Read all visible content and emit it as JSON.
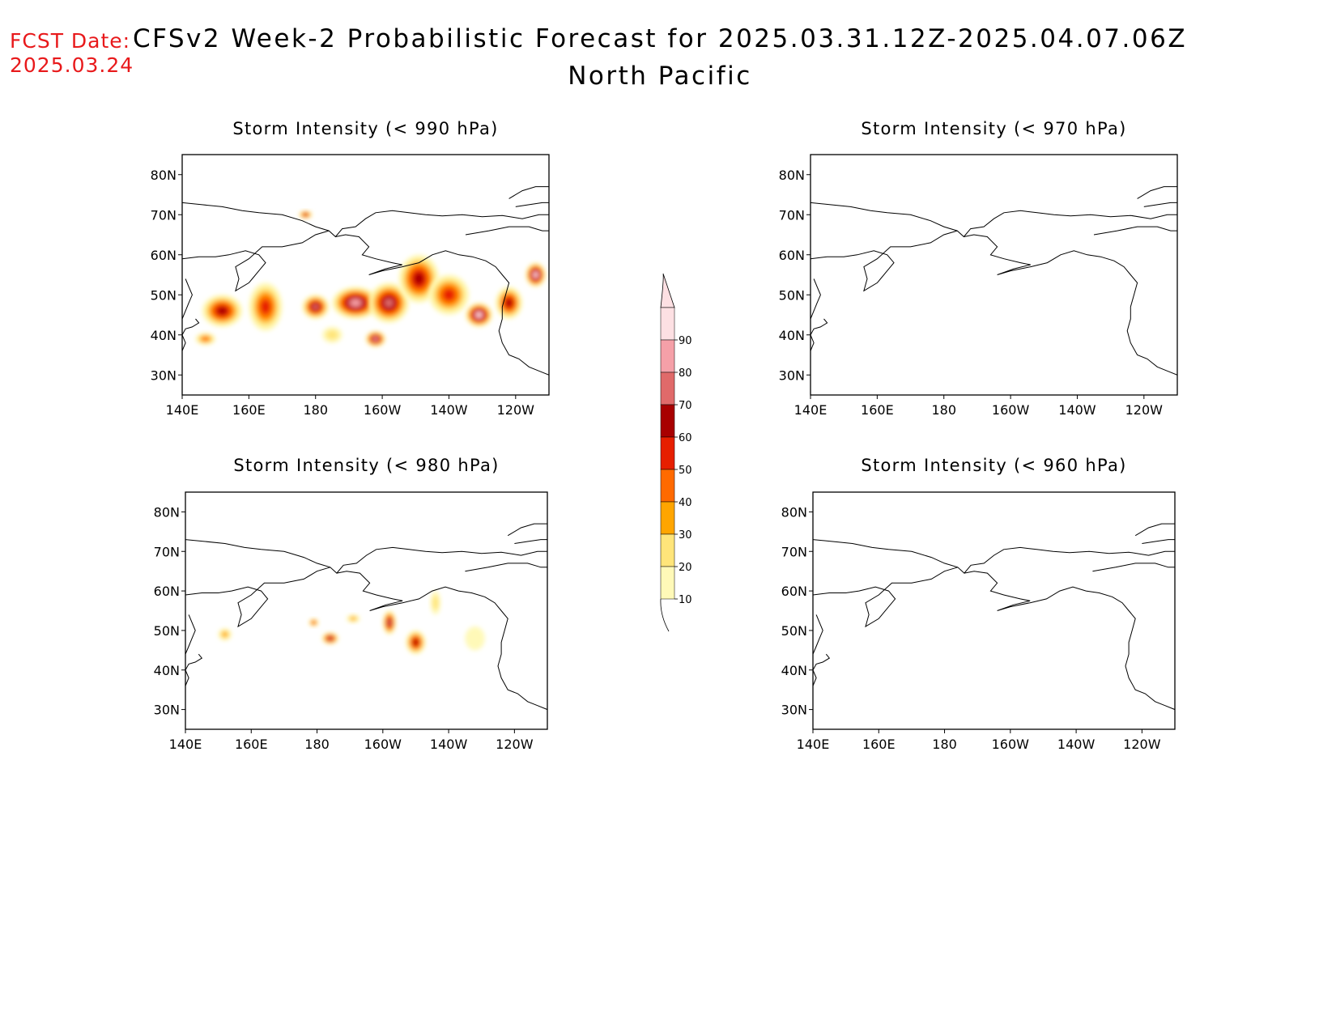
{
  "header": {
    "fcst_label": "FCST Date:",
    "fcst_date": "2025.03.24",
    "title": "CFSv2 Week-2 Probabilistic Forecast for 2025.03.31.12Z-2025.04.07.06Z",
    "subtitle": "North Pacific"
  },
  "colors": {
    "levels": [
      "#fff9b8",
      "#ffe57a",
      "#ffa500",
      "#ff6a00",
      "#e61f00",
      "#a80000",
      "#e06a6a",
      "#f5a0a8",
      "#fde0e3"
    ]
  },
  "chart_data": {
    "type": "heatmap",
    "lon_ticks": [
      "140E",
      "160E",
      "180",
      "160W",
      "140W",
      "120W"
    ],
    "lat_ticks": [
      "80N",
      "70N",
      "60N",
      "50N",
      "40N",
      "30N"
    ],
    "lon_range": [
      140,
      250
    ],
    "lat_range": [
      25,
      85
    ],
    "colorbar": {
      "levels": [
        10,
        20,
        30,
        40,
        50,
        60,
        70,
        80,
        90
      ],
      "labels": [
        "10",
        "20",
        "30",
        "40",
        "50",
        "60",
        "70",
        "80",
        "90"
      ]
    },
    "panels": [
      {
        "id": "p990",
        "title": "Storm Intensity (< 990 hPa)",
        "blobs": [
          {
            "lon": 152,
            "lat": 46,
            "rx": 6,
            "ry": 4,
            "level": 6
          },
          {
            "lon": 165,
            "lat": 47,
            "rx": 5,
            "ry": 6,
            "level": 5
          },
          {
            "lon": 180,
            "lat": 47,
            "rx": 4,
            "ry": 3,
            "level": 7
          },
          {
            "lon": 192,
            "lat": 48,
            "rx": 7,
            "ry": 4,
            "level": 8
          },
          {
            "lon": 202,
            "lat": 48,
            "rx": 6,
            "ry": 5,
            "level": 7
          },
          {
            "lon": 211,
            "lat": 54,
            "rx": 6,
            "ry": 6,
            "level": 6
          },
          {
            "lon": 220,
            "lat": 50,
            "rx": 6,
            "ry": 5,
            "level": 5
          },
          {
            "lon": 229,
            "lat": 45,
            "rx": 4,
            "ry": 3,
            "level": 9
          },
          {
            "lon": 238,
            "lat": 48,
            "rx": 4,
            "ry": 4,
            "level": 6
          },
          {
            "lon": 246,
            "lat": 55,
            "rx": 3,
            "ry": 3,
            "level": 9
          },
          {
            "lon": 177,
            "lat": 70,
            "rx": 2,
            "ry": 1,
            "level": 6
          },
          {
            "lon": 185,
            "lat": 40,
            "rx": 3,
            "ry": 2,
            "level": 2
          },
          {
            "lon": 198,
            "lat": 39,
            "rx": 3,
            "ry": 2,
            "level": 8
          },
          {
            "lon": 147,
            "lat": 39,
            "rx": 3,
            "ry": 1.5,
            "level": 4
          }
        ]
      },
      {
        "id": "p970",
        "title": "Storm Intensity (< 970 hPa)",
        "blobs": []
      },
      {
        "id": "p980",
        "title": "Storm Intensity (< 980 hPa)",
        "blobs": [
          {
            "lon": 152,
            "lat": 49,
            "rx": 2,
            "ry": 1.5,
            "level": 3
          },
          {
            "lon": 184,
            "lat": 48,
            "rx": 2.5,
            "ry": 1.5,
            "level": 7
          },
          {
            "lon": 179,
            "lat": 52,
            "rx": 1.5,
            "ry": 1,
            "level": 5
          },
          {
            "lon": 191,
            "lat": 53,
            "rx": 2,
            "ry": 1,
            "level": 3
          },
          {
            "lon": 202,
            "lat": 52,
            "rx": 2,
            "ry": 3,
            "level": 7
          },
          {
            "lon": 210,
            "lat": 47,
            "rx": 3,
            "ry": 3,
            "level": 6
          },
          {
            "lon": 216,
            "lat": 57,
            "rx": 1.5,
            "ry": 3,
            "level": 2
          },
          {
            "lon": 228,
            "lat": 48,
            "rx": 3,
            "ry": 3,
            "level": 1
          }
        ]
      },
      {
        "id": "p960",
        "title": "Storm Intensity (< 960 hPa)",
        "blobs": []
      }
    ]
  }
}
